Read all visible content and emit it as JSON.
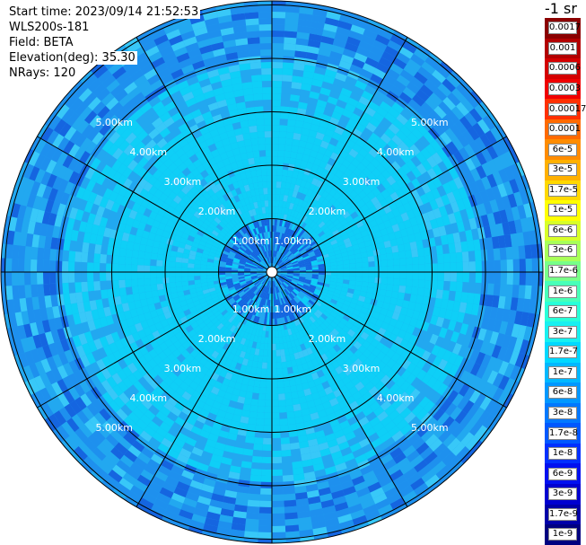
{
  "info": {
    "start_time": "Start time: 2023/09/14 21:52:53",
    "device": "WLS200s-181",
    "field": "Field: BETA",
    "elevation": "Elevation(deg): 35.30",
    "nrays": "NRays: 120"
  },
  "unit_label": "-1 sr",
  "range_rings": [
    {
      "label": "1.00km",
      "km": 1
    },
    {
      "label": "2.00km",
      "km": 2
    },
    {
      "label": "3.00km",
      "km": 3
    },
    {
      "label": "4.00km",
      "km": 4
    },
    {
      "label": "5.00km",
      "km": 5
    }
  ],
  "spokes_count": 12,
  "colorbar": [
    {
      "label": "0.0017",
      "color": "#8b0000"
    },
    {
      "label": "0.001",
      "color": "#b20000"
    },
    {
      "label": "0.0006",
      "color": "#d40000"
    },
    {
      "label": "0.0003",
      "color": "#f00000"
    },
    {
      "label": "0.00017",
      "color": "#ff3000"
    },
    {
      "label": "0.0001",
      "color": "#ff6a00"
    },
    {
      "label": "6e-5",
      "color": "#ff8c00"
    },
    {
      "label": "3e-5",
      "color": "#ffb000"
    },
    {
      "label": "1.7e-5",
      "color": "#ffd800"
    },
    {
      "label": "1e-5",
      "color": "#ffff00"
    },
    {
      "label": "6e-6",
      "color": "#d8ff28"
    },
    {
      "label": "3e-6",
      "color": "#a8ff58"
    },
    {
      "label": "1.7e-6",
      "color": "#78ff88"
    },
    {
      "label": "1e-6",
      "color": "#48ffb8"
    },
    {
      "label": "6e-7",
      "color": "#28ffd8"
    },
    {
      "label": "3e-7",
      "color": "#18f0f0"
    },
    {
      "label": "1.7e-7",
      "color": "#00d8ff"
    },
    {
      "label": "1e-7",
      "color": "#00b8ff"
    },
    {
      "label": "6e-8",
      "color": "#0098ff"
    },
    {
      "label": "3e-8",
      "color": "#0078ff"
    },
    {
      "label": "1.7e-8",
      "color": "#0058ff"
    },
    {
      "label": "1e-8",
      "color": "#0030ff"
    },
    {
      "label": "6e-9",
      "color": "#0010f0"
    },
    {
      "label": "3e-9",
      "color": "#0000d0"
    },
    {
      "label": "1.7e-9",
      "color": "#0000a8"
    },
    {
      "label": "1e-9",
      "color": "#000080"
    }
  ],
  "palette": {
    "inner": "#0ecff7",
    "mid": "#22a8f0",
    "outer": "#1e90ee",
    "dark": "#1565e0",
    "light": "#38c8f8"
  }
}
